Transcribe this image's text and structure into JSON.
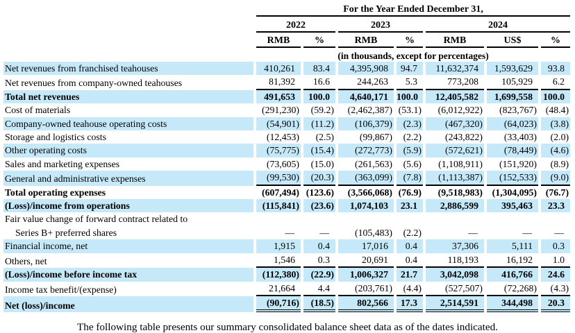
{
  "colors": {
    "stripe": "#c6e9fa",
    "rule": "#000000"
  },
  "table": {
    "title": "For the Year Ended December 31,",
    "units_note": "(in thousands, except for percentages)",
    "year_groups": [
      {
        "label": "2022"
      },
      {
        "label": "2023"
      },
      {
        "label": "2024"
      }
    ],
    "column_headers": [
      "RMB",
      "%",
      "RMB",
      "%",
      "RMB",
      "US$",
      "%"
    ],
    "rows": [
      {
        "label": "Net revenues from franchised teahouses",
        "values": [
          "410,261",
          "83.4",
          "4,395,908",
          "94.7",
          "11,632,374",
          "1,593,629",
          "93.8"
        ],
        "bold": false,
        "shaded": true,
        "rule": "none"
      },
      {
        "label": "Net revenues from company-owned teahouses",
        "values": [
          "81,392",
          "16.6",
          "244,263",
          "5.3",
          "773,208",
          "105,929",
          "6.2"
        ],
        "bold": false,
        "shaded": false,
        "rule": "single"
      },
      {
        "label": "Total net revenues",
        "values": [
          "491,653",
          "100.0",
          "4,640,171",
          "100.0",
          "12,405,582",
          "1,699,558",
          "100.0"
        ],
        "bold": true,
        "shaded": true,
        "rule": "none"
      },
      {
        "label": "Cost of materials",
        "values": [
          "(291,230)",
          "(59.2)",
          "(2,462,387)",
          "(53.1)",
          "(6,012,922)",
          "(823,767)",
          "(48.4)"
        ],
        "bold": false,
        "shaded": false,
        "rule": "none"
      },
      {
        "label": "Company-owned teahouse operating costs",
        "values": [
          "(54,901)",
          "(11.2)",
          "(106,379)",
          "(2.3)",
          "(467,320)",
          "(64,023)",
          "(3.8)"
        ],
        "bold": false,
        "shaded": true,
        "rule": "none"
      },
      {
        "label": "Storage and logistics costs",
        "values": [
          "(12,453)",
          "(2.5)",
          "(99,867)",
          "(2.2)",
          "(243,822)",
          "(33,403)",
          "(2.0)"
        ],
        "bold": false,
        "shaded": false,
        "rule": "none"
      },
      {
        "label": "Other operating costs",
        "values": [
          "(75,775)",
          "(15.4)",
          "(272,773)",
          "(5.9)",
          "(572,621)",
          "(78,449)",
          "(4.6)"
        ],
        "bold": false,
        "shaded": true,
        "rule": "none"
      },
      {
        "label": "Sales and marketing expenses",
        "values": [
          "(73,605)",
          "(15.0)",
          "(261,563)",
          "(5.6)",
          "(1,108,911)",
          "(151,920)",
          "(8.9)"
        ],
        "bold": false,
        "shaded": false,
        "rule": "none"
      },
      {
        "label": "General and administrative expenses",
        "values": [
          "(99,530)",
          "(20.3)",
          "(363,099)",
          "(7.8)",
          "(1,113,387)",
          "(152,533)",
          "(9.0)"
        ],
        "bold": false,
        "shaded": true,
        "rule": "single"
      },
      {
        "label": "Total operating expenses",
        "values": [
          "(607,494)",
          "(123.6)",
          "(3,566,068)",
          "(76.9)",
          "(9,518,983)",
          "(1,304,095)",
          "(76.7)"
        ],
        "bold": true,
        "shaded": false,
        "rule": "none"
      },
      {
        "label": "(Loss)/income from operations",
        "values": [
          "(115,841)",
          "(23.6)",
          "1,074,103",
          "23.1",
          "2,886,599",
          "395,463",
          "23.3"
        ],
        "bold": true,
        "shaded": true,
        "rule": "none"
      },
      {
        "label": "Fair value change of forward contract related to",
        "label2": "Series B+ preferred shares",
        "values": [
          "—",
          "—",
          "(105,483)",
          "(2.2)",
          "—",
          "—",
          "—"
        ],
        "bold": false,
        "shaded": false,
        "rule": "none"
      },
      {
        "label": "Financial income, net",
        "values": [
          "1,915",
          "0.4",
          "17,016",
          "0.4",
          "37,306",
          "5,111",
          "0.3"
        ],
        "bold": false,
        "shaded": true,
        "rule": "none"
      },
      {
        "label": "Others, net",
        "values": [
          "1,546",
          "0.3",
          "20,691",
          "0.4",
          "118,193",
          "16,192",
          "1.0"
        ],
        "bold": false,
        "shaded": false,
        "rule": "single"
      },
      {
        "label": "(Loss)/income before income tax",
        "values": [
          "(112,380)",
          "(22.9)",
          "1,006,327",
          "21.7",
          "3,042,098",
          "416,766",
          "24.6"
        ],
        "bold": true,
        "shaded": true,
        "rule": "none"
      },
      {
        "label": "Income tax benefit/(expense)",
        "values": [
          "21,664",
          "4.4",
          "(203,761)",
          "(4.4)",
          "(527,507)",
          "(72,268)",
          "(4.3)"
        ],
        "bold": false,
        "shaded": false,
        "rule": "single"
      },
      {
        "label": "Net (loss)/income",
        "values": [
          "(90,716)",
          "(18.5)",
          "802,566",
          "17.3",
          "2,514,591",
          "344,498",
          "20.3"
        ],
        "bold": true,
        "shaded": true,
        "rule": "double"
      }
    ]
  },
  "footer": {
    "text": "The following table presents our summary consolidated balance sheet data as of the dates indicated."
  }
}
